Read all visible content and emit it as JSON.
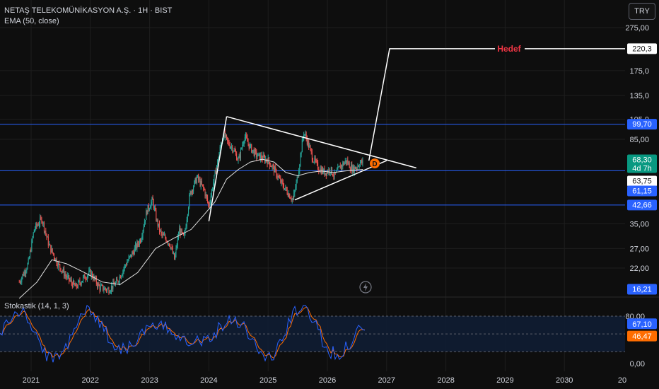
{
  "header": {
    "title": "NETAŞ TELEKOMÜNİKASYON A.Ş. · 1H · BIST",
    "indicator": "EMA (50, close)",
    "currency_button": "TRY"
  },
  "stochastic": {
    "label": "Stokastik (14, 1, 3)",
    "axis_ticks": [
      "80,00",
      "0,00"
    ],
    "k_value": "67,10",
    "d_value": "46,47",
    "k_color": "#2962ff",
    "d_color": "#ff6d00"
  },
  "colors": {
    "up": "#26a69a",
    "down": "#ef5350",
    "ema": "#e0e0e0",
    "level_line": "#2962ff",
    "drawing": "#ffffff",
    "target_label": "#f23645",
    "background": "#0e0e0e"
  },
  "chart_data": {
    "type": "candlestick",
    "scale": "log",
    "x_ticks": [
      "2021",
      "2022",
      "2023",
      "2024",
      "2025",
      "2026",
      "2027",
      "2028",
      "2029",
      "2030",
      "20"
    ],
    "y_ticks": [
      "275,00",
      "175,0",
      "135,0",
      "105,0",
      "85,00",
      "35,00",
      "27,00",
      "22,00"
    ],
    "price_labels": [
      {
        "text": "220,3",
        "style": "white"
      },
      {
        "text": "99,70",
        "style": "blue"
      },
      {
        "text": "68,30",
        "sub": "4d 7h",
        "style": "green"
      },
      {
        "text": "63,75",
        "style": "white"
      },
      {
        "text": "61,15",
        "style": "blue"
      },
      {
        "text": "42,66",
        "style": "blue"
      },
      {
        "text": "16,21",
        "style": "blue"
      }
    ],
    "horizontal_levels": [
      99.7,
      61.15,
      42.66
    ],
    "annotations": [
      {
        "text": "Hedef",
        "value": 220.3
      },
      {
        "text": "D"
      }
    ],
    "price_path": [
      [
        2020.8,
        19
      ],
      [
        2020.95,
        23
      ],
      [
        2021.05,
        33
      ],
      [
        2021.18,
        37
      ],
      [
        2021.3,
        28
      ],
      [
        2021.45,
        23
      ],
      [
        2021.6,
        20
      ],
      [
        2021.75,
        18
      ],
      [
        2021.9,
        20
      ],
      [
        2022.0,
        21
      ],
      [
        2022.15,
        18
      ],
      [
        2022.3,
        17.5
      ],
      [
        2022.45,
        19
      ],
      [
        2022.6,
        23
      ],
      [
        2022.72,
        26
      ],
      [
        2022.85,
        30
      ],
      [
        2022.95,
        40
      ],
      [
        2023.05,
        45
      ],
      [
        2023.12,
        36
      ],
      [
        2023.2,
        31
      ],
      [
        2023.28,
        30
      ],
      [
        2023.35,
        28
      ],
      [
        2023.42,
        24
      ],
      [
        2023.5,
        33
      ],
      [
        2023.58,
        30
      ],
      [
        2023.68,
        48
      ],
      [
        2023.8,
        57
      ],
      [
        2023.92,
        50
      ],
      [
        2024.0,
        42
      ],
      [
        2024.05,
        50
      ],
      [
        2024.12,
        62
      ],
      [
        2024.2,
        80
      ],
      [
        2024.25,
        90
      ],
      [
        2024.32,
        82
      ],
      [
        2024.4,
        78
      ],
      [
        2024.5,
        68
      ],
      [
        2024.6,
        88
      ],
      [
        2024.7,
        78
      ],
      [
        2024.8,
        72
      ],
      [
        2024.9,
        70
      ],
      [
        2025.0,
        68
      ],
      [
        2025.1,
        62
      ],
      [
        2025.2,
        55
      ],
      [
        2025.3,
        50
      ],
      [
        2025.42,
        45
      ],
      [
        2025.5,
        58
      ],
      [
        2025.6,
        92
      ],
      [
        2025.66,
        84
      ],
      [
        2025.75,
        70
      ],
      [
        2025.85,
        63
      ],
      [
        2025.95,
        60
      ],
      [
        2026.05,
        62
      ],
      [
        2026.12,
        58
      ],
      [
        2026.22,
        64
      ],
      [
        2026.32,
        68
      ],
      [
        2026.42,
        62
      ],
      [
        2026.5,
        64
      ],
      [
        2026.55,
        67
      ],
      [
        2026.6,
        66
      ]
    ],
    "ema_path": [
      [
        2020.8,
        16
      ],
      [
        2021.1,
        19
      ],
      [
        2021.35,
        24
      ],
      [
        2021.6,
        23
      ],
      [
        2021.9,
        21
      ],
      [
        2022.2,
        19
      ],
      [
        2022.5,
        18.5
      ],
      [
        2022.8,
        21
      ],
      [
        2023.1,
        27
      ],
      [
        2023.4,
        30
      ],
      [
        2023.7,
        33
      ],
      [
        2023.9,
        38
      ],
      [
        2024.1,
        44
      ],
      [
        2024.3,
        56
      ],
      [
        2024.5,
        62
      ],
      [
        2024.7,
        67
      ],
      [
        2024.9,
        69
      ],
      [
        2025.1,
        67
      ],
      [
        2025.3,
        60
      ],
      [
        2025.5,
        58
      ],
      [
        2025.7,
        60
      ],
      [
        2025.9,
        61
      ],
      [
        2026.1,
        60
      ],
      [
        2026.3,
        61
      ],
      [
        2026.6,
        62
      ]
    ],
    "drawings": {
      "triangle_upper": [
        [
          2024.3,
          108
        ],
        [
          2027.5,
          63
        ]
      ],
      "triangle_lower": [
        [
          2025.45,
          45
        ],
        [
          2027.0,
          68
        ]
      ],
      "triangle_left": [
        [
          2024.0,
          36
        ],
        [
          2024.3,
          108
        ]
      ],
      "target_line": [
        [
          2026.7,
          68
        ],
        [
          2027.05,
          220.3
        ],
        [
          2028.0,
          220.3
        ]
      ],
      "pole": [
        [
          2024.0,
          36
        ],
        [
          2024.3,
          108
        ]
      ]
    }
  }
}
